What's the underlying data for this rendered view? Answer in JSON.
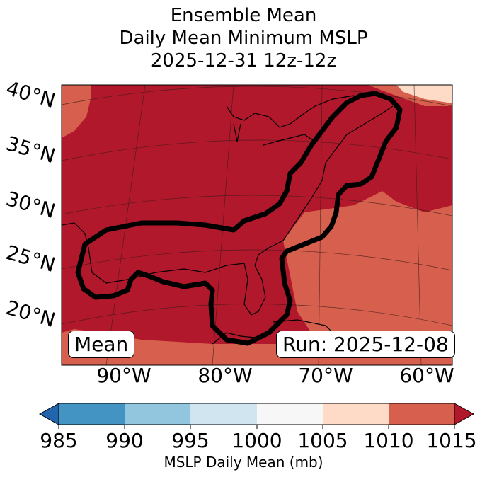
{
  "title": {
    "line1": "Ensemble Mean",
    "line2": "Daily Mean Minimum MSLP",
    "line3": "2025-12-31 12z-12z"
  },
  "map": {
    "lat_labels": [
      "40°N",
      "35°N",
      "30°N",
      "25°N",
      "20°N"
    ],
    "lon_labels": [
      "90°W",
      "80°W",
      "70°W",
      "60°W"
    ],
    "mean_label": "Mean",
    "run_label": "Run: 2025-12-08",
    "colors": {
      "band_1010_1015": "#b2182b",
      "band_1005_1010": "#d6604d",
      "band_1000_1005": "#fddbc7",
      "outline": "#000000"
    }
  },
  "colorbar": {
    "ticks": [
      "985",
      "990",
      "995",
      "1000",
      "1005",
      "1010",
      "1015"
    ],
    "colors": [
      "#2166ac",
      "#4393c3",
      "#92c5de",
      "#d1e5f0",
      "#f7f7f7",
      "#fddbc7",
      "#d6604d",
      "#b2182b"
    ],
    "label": "MSLP Daily Mean (mb)"
  }
}
